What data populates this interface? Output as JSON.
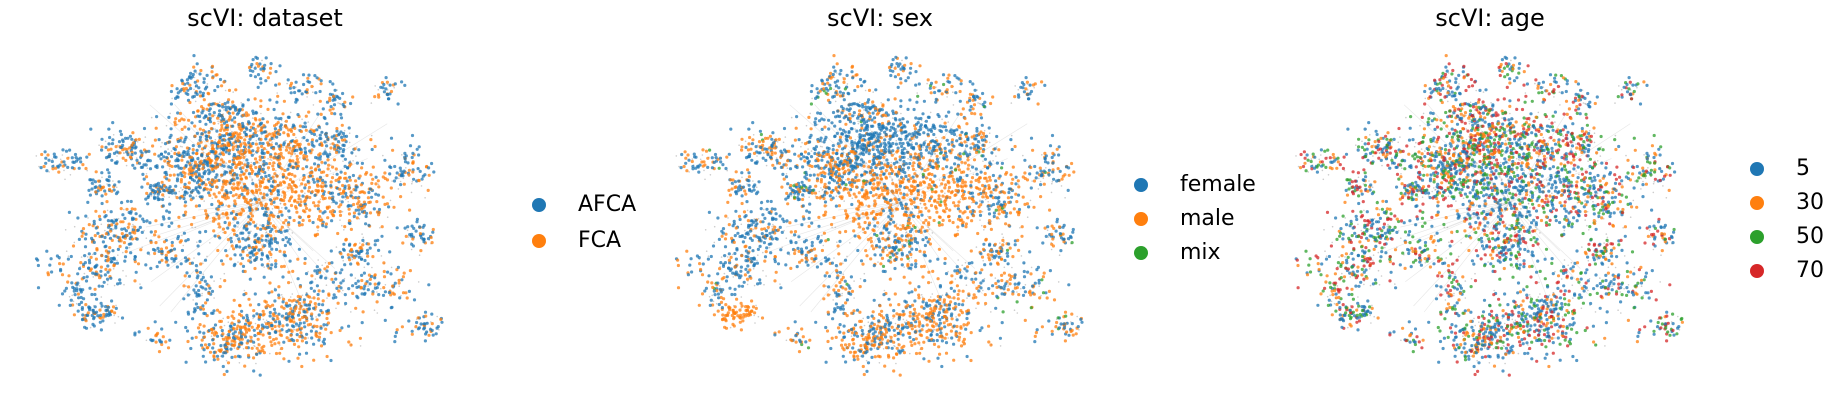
{
  "chart_data": [
    {
      "type": "scatter",
      "title": "scVI: dataset",
      "xlabel": "",
      "ylabel": "",
      "axes": "off",
      "grid": false,
      "legend_placement": "right",
      "legend": [
        {
          "label": "AFCA",
          "color": "#1f77b4"
        },
        {
          "label": "FCA",
          "color": "#ff7f0e"
        }
      ],
      "color_by": "dataset",
      "series": [
        {
          "name": "AFCA",
          "color": "#1f77b4"
        },
        {
          "name": "FCA",
          "color": "#ff7f0e"
        }
      ]
    },
    {
      "type": "scatter",
      "title": "scVI: sex",
      "xlabel": "",
      "ylabel": "",
      "axes": "off",
      "grid": false,
      "legend_placement": "right",
      "legend": [
        {
          "label": "female",
          "color": "#1f77b4"
        },
        {
          "label": "male",
          "color": "#ff7f0e"
        },
        {
          "label": "mix",
          "color": "#2ca02c"
        }
      ],
      "color_by": "sex",
      "series": [
        {
          "name": "female",
          "color": "#1f77b4"
        },
        {
          "name": "male",
          "color": "#ff7f0e"
        },
        {
          "name": "mix",
          "color": "#2ca02c"
        }
      ]
    },
    {
      "type": "scatter",
      "title": "scVI: age",
      "xlabel": "",
      "ylabel": "",
      "axes": "off",
      "grid": false,
      "legend_placement": "right",
      "legend": [
        {
          "label": "5",
          "color": "#1f77b4"
        },
        {
          "label": "30",
          "color": "#ff7f0e"
        },
        {
          "label": "50",
          "color": "#2ca02c"
        },
        {
          "label": "70",
          "color": "#d62728"
        }
      ],
      "color_by": "age",
      "series": [
        {
          "name": "5",
          "color": "#1f77b4"
        },
        {
          "name": "30",
          "color": "#ff7f0e"
        },
        {
          "name": "50",
          "color": "#2ca02c"
        },
        {
          "name": "70",
          "color": "#d62728"
        }
      ]
    }
  ]
}
